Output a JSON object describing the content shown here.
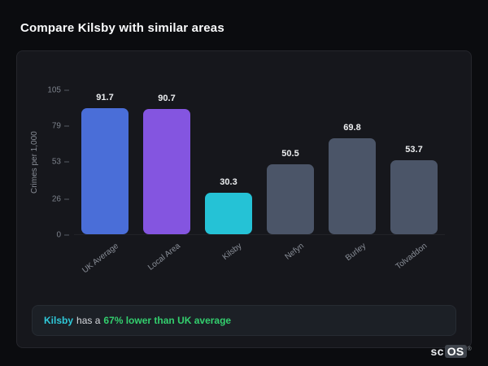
{
  "page_title": "Compare Kilsby with similar areas",
  "chart_data": {
    "type": "bar",
    "categories": [
      "UK Average",
      "Local Area",
      "Kilsby",
      "Nefyn",
      "Burley",
      "Tolvaddon"
    ],
    "values": [
      91.7,
      90.7,
      30.3,
      50.5,
      69.8,
      53.7
    ],
    "bar_colors": [
      "#4a6ed8",
      "#8455e0",
      "#25c2d6",
      "#4b5568",
      "#4b5568",
      "#4b5568"
    ],
    "title": "Compare Kilsby with similar areas",
    "xlabel": "",
    "ylabel": "Crimes per 1,000",
    "yticks": [
      0,
      26,
      53,
      79,
      105
    ],
    "ylim": [
      0,
      105
    ],
    "grid": false,
    "legend": false
  },
  "note": {
    "subject": "Kilsby",
    "middle": "has a",
    "highlight": "67% lower than UK average",
    "subject_color": "#2fc9d9",
    "highlight_color": "#33cf6e"
  },
  "logo": {
    "prefix": "sc",
    "suffix": "OS",
    "registered": "®"
  }
}
